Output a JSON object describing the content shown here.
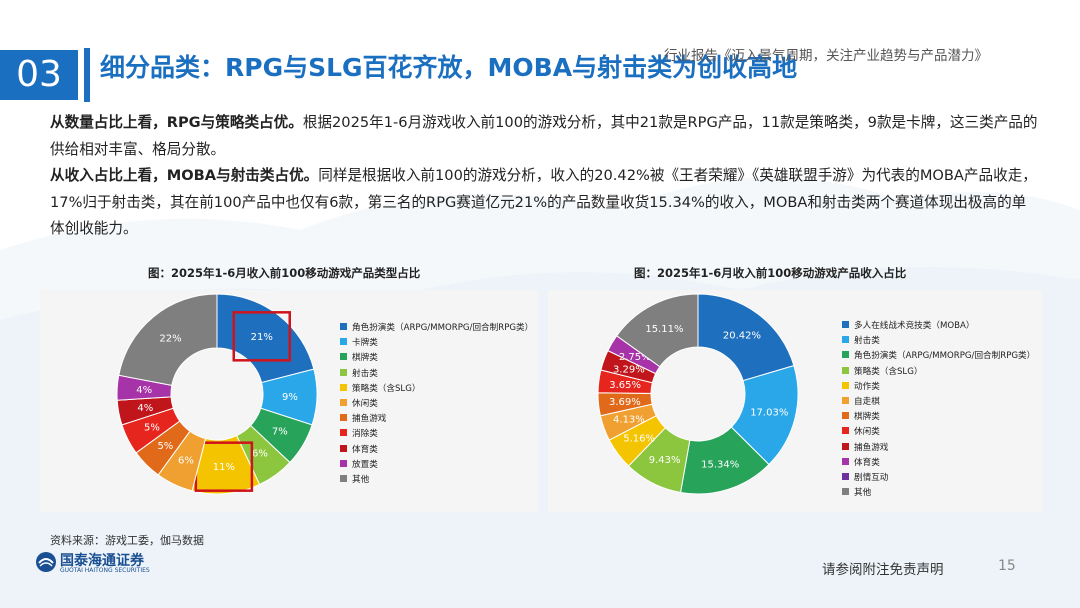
{
  "header": {
    "section_number": "03",
    "title": "细分品类：RPG与SLG百花齐放，MOBA与射击类为创收高地",
    "report_subtitle": "行业报告《迈入景气周期，关注产业趋势与产品潜力》"
  },
  "body": {
    "para1_bold": "从数量占比上看，RPG与策略类占优。",
    "para1_text": "根据2025年1-6月游戏收入前100的游戏分析，其中21款是RPG产品，11款是策略类，9款是卡牌，这三类产品的供给相对丰富、格局分散。",
    "para2_bold": "从收入占比上看，MOBA与射击类占优。",
    "para2_text": "同样是根据收入前100的游戏分析，收入的20.42%被《王者荣耀》《英雄联盟手游》为代表的MOBA产品收走，17%归于射击类，其在前100产品中也仅有6款，第三名的RPG赛道亿元21%的产品数量收货15.34%的收入，MOBA和射击类两个赛道体现出极高的单体创收能力。"
  },
  "footer": {
    "source": "资料来源：游戏工委，伽马数据",
    "logo_text": "国泰海通证券",
    "logo_sub": "GUOTAI HAITONG SECURITIES",
    "disclaimer": "请参阅附注免责声明",
    "page_number": "15"
  },
  "chart_data": [
    {
      "type": "pie",
      "title": "图：2025年1-6月收入前100移动游戏产品类型占比",
      "categories": [
        "角色扮演类（ARPG/MMORPG/回合制RPG类）",
        "卡牌类",
        "棋牌类",
        "射击类",
        "策略类（含SLG）",
        "休闲类",
        "捕鱼游戏",
        "消除类",
        "体育类",
        "放置类",
        "其他"
      ],
      "values": [
        21,
        9,
        7,
        6,
        11,
        6,
        5,
        5,
        4,
        4,
        22
      ],
      "labels": [
        "21%",
        "9%",
        "7%",
        "6%",
        "11%",
        "6%",
        "5%",
        "5%",
        "4%",
        "4%",
        "22%"
      ],
      "colors": [
        "#1f6fbf",
        "#2aa7e8",
        "#27a35a",
        "#8cc63f",
        "#f5c400",
        "#f0a030",
        "#e06a1a",
        "#e6251e",
        "#c0161b",
        "#a733a8",
        "#7f7f7f"
      ],
      "highlighted": [
        "角色扮演类（ARPG/MMORPG/回合制RPG类）",
        "策略类（含SLG）"
      ]
    },
    {
      "type": "pie",
      "title": "图：2025年1-6月收入前100移动游戏产品收入占比",
      "categories": [
        "多人在线战术竞技类（MOBA）",
        "射击类",
        "角色扮演类（ARPG/MMORPG/回合制RPG类）",
        "策略类（含SLG）",
        "动作类",
        "自走棋",
        "棋牌类",
        "休闲类",
        "捕鱼游戏",
        "体育类",
        "剧情互动",
        "其他"
      ],
      "values": [
        20.42,
        17.03,
        15.34,
        9.43,
        5.16,
        4.13,
        3.69,
        3.65,
        3.29,
        2.75,
        0.0,
        15.11
      ],
      "labels": [
        "20.42%",
        "17.03%",
        "15.34%",
        "9.43%",
        "5.16%",
        "4.13%",
        "3.69%",
        "3.65%",
        "3.29%",
        "2.75%",
        "",
        "15.11%"
      ],
      "colors": [
        "#1f6fbf",
        "#2aa7e8",
        "#27a35a",
        "#8cc63f",
        "#f5c400",
        "#f0a030",
        "#e06a1a",
        "#e6251e",
        "#c0161b",
        "#a733a8",
        "#7030a0",
        "#7f7f7f"
      ]
    }
  ]
}
